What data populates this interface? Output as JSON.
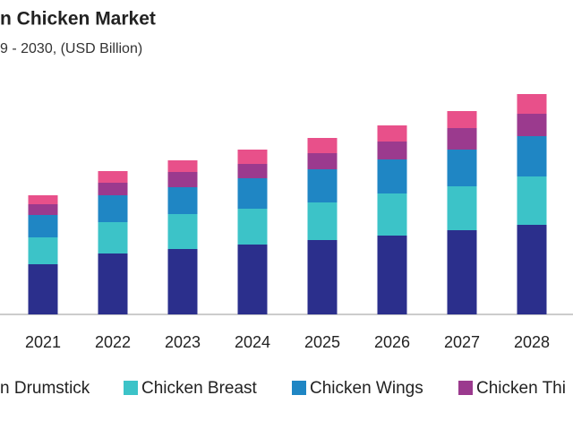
{
  "chart_data": {
    "type": "stacked_bar",
    "title": "n Chicken Market",
    "subtitle": "9 - 2030, (USD Billion)",
    "categories": [
      "2021",
      "2022",
      "2023",
      "2024",
      "2025",
      "2026",
      "2027",
      "2028"
    ],
    "series": [
      {
        "name": "n Drumstick",
        "color": "#2b2f8c",
        "values": [
          56,
          68,
          73,
          78,
          83,
          88,
          94,
          100
        ]
      },
      {
        "name": "Chicken Breast",
        "color": "#3cc3c8",
        "values": [
          30,
          35,
          39,
          40,
          42,
          47,
          49,
          54
        ]
      },
      {
        "name": "Chicken Wings",
        "color": "#1f86c4",
        "values": [
          25,
          30,
          30,
          34,
          37,
          38,
          41,
          45
        ]
      },
      {
        "name": "Chicken Thi",
        "color": "#9b3a8e",
        "values": [
          12,
          14,
          17,
          16,
          18,
          20,
          24,
          25
        ]
      },
      {
        "color": "#e8508a",
        "values": [
          10,
          13,
          13,
          16,
          17,
          18,
          19,
          22
        ]
      }
    ]
  }
}
